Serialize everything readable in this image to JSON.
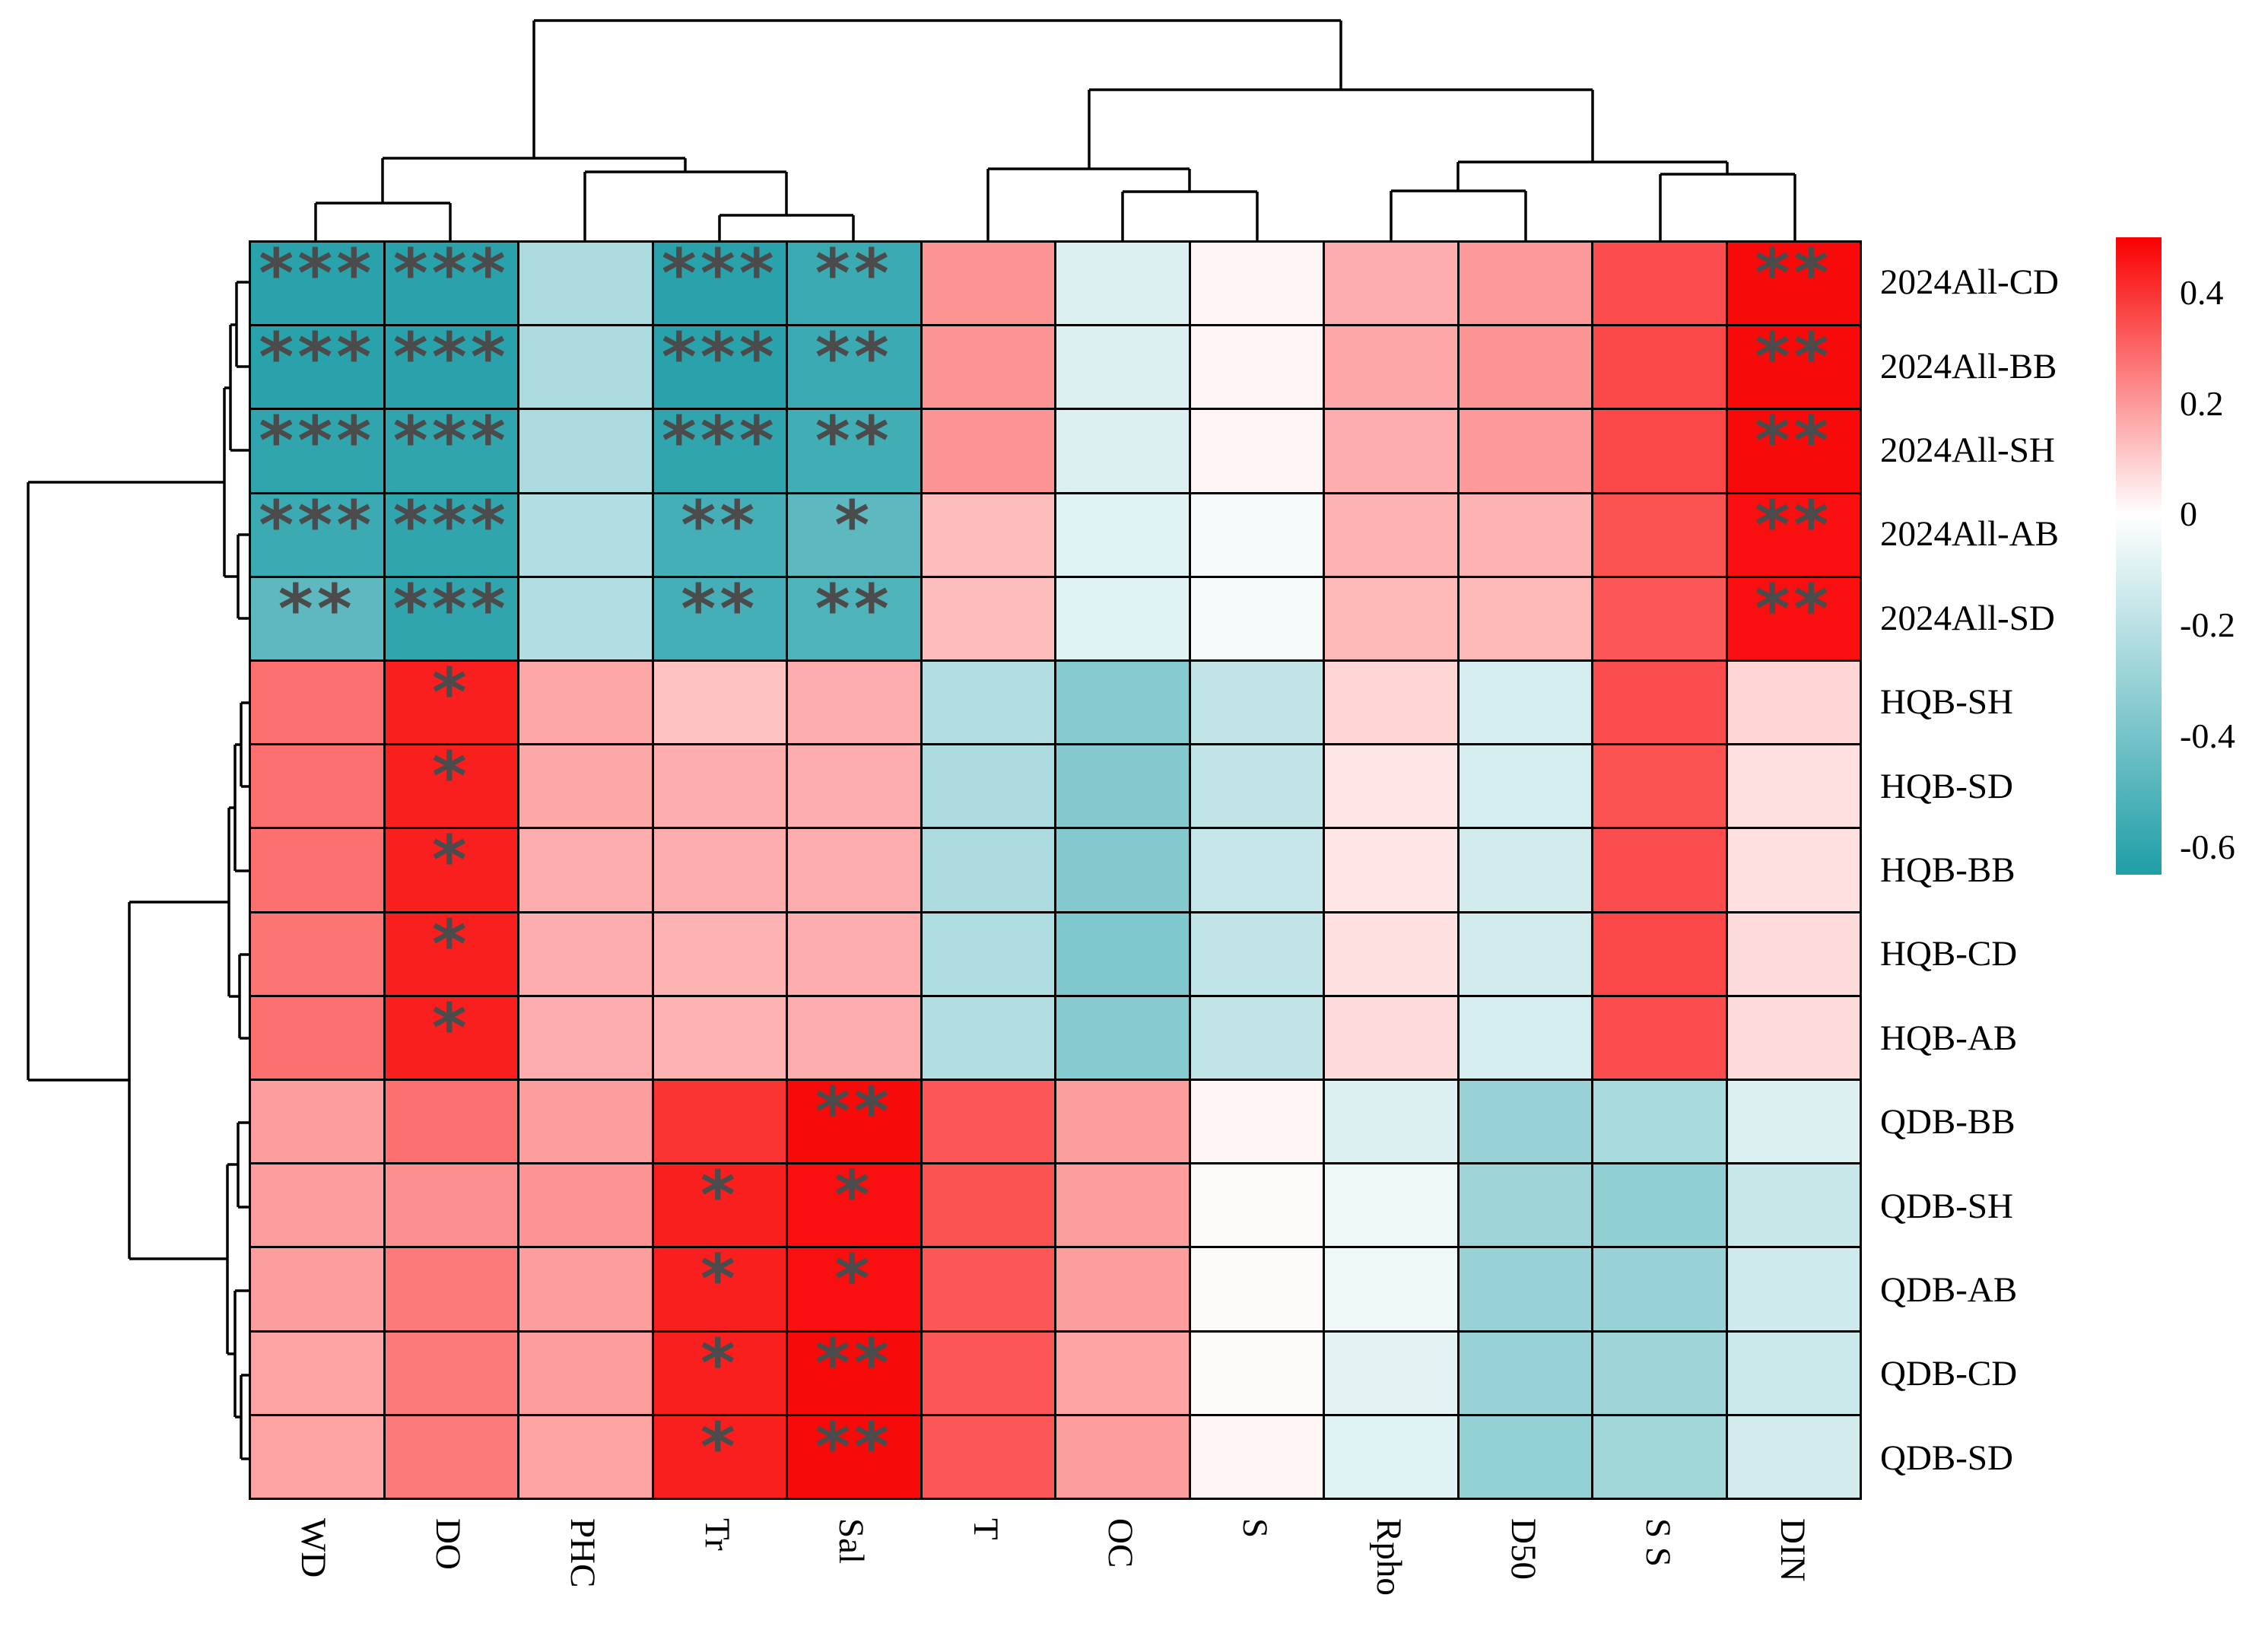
{
  "chart_data": {
    "type": "heatmap",
    "title": "",
    "legend_position": "right",
    "rows": [
      "2024All-CD",
      "2024All-BB",
      "2024All-SH",
      "2024All-AB",
      "2024All-SD",
      "HQB-SH",
      "HQB-SD",
      "HQB-BB",
      "HQB-CD",
      "HQB-AB",
      "QDB-BB",
      "QDB-SH",
      "QDB-AB",
      "QDB-CD",
      "QDB-SD"
    ],
    "columns": [
      "WD",
      "DO",
      "PHC",
      "Tr",
      "Sal",
      "T",
      "OC",
      "S",
      "Rpho",
      "D50",
      "S S",
      "DIN"
    ],
    "values": [
      [
        -0.62,
        -0.62,
        -0.24,
        -0.62,
        -0.57,
        0.21,
        -0.1,
        0.02,
        0.16,
        0.2,
        0.35,
        0.48
      ],
      [
        -0.62,
        -0.62,
        -0.24,
        -0.62,
        -0.57,
        0.21,
        -0.1,
        0.02,
        0.17,
        0.21,
        0.36,
        0.48
      ],
      [
        -0.6,
        -0.6,
        -0.24,
        -0.6,
        -0.55,
        0.21,
        -0.1,
        0.02,
        0.16,
        0.2,
        0.36,
        0.48
      ],
      [
        -0.57,
        -0.6,
        -0.22,
        -0.54,
        -0.47,
        0.13,
        -0.09,
        -0.03,
        0.15,
        0.15,
        0.34,
        0.47
      ],
      [
        -0.47,
        -0.6,
        -0.22,
        -0.54,
        -0.51,
        0.13,
        -0.09,
        -0.03,
        0.14,
        0.14,
        0.33,
        0.47
      ],
      [
        0.28,
        0.44,
        0.17,
        0.12,
        0.16,
        -0.22,
        -0.35,
        -0.18,
        0.08,
        -0.12,
        0.35,
        0.08
      ],
      [
        0.28,
        0.44,
        0.17,
        0.16,
        0.16,
        -0.24,
        -0.36,
        -0.18,
        0.05,
        -0.12,
        0.34,
        0.06
      ],
      [
        0.28,
        0.44,
        0.16,
        0.16,
        0.16,
        -0.24,
        -0.36,
        -0.17,
        0.05,
        -0.13,
        0.35,
        0.06
      ],
      [
        0.27,
        0.44,
        0.16,
        0.15,
        0.16,
        -0.23,
        -0.37,
        -0.18,
        0.06,
        -0.13,
        0.36,
        0.07
      ],
      [
        0.28,
        0.44,
        0.16,
        0.15,
        0.16,
        -0.22,
        -0.35,
        -0.18,
        0.07,
        -0.12,
        0.35,
        0.07
      ],
      [
        0.19,
        0.28,
        0.19,
        0.4,
        0.48,
        0.33,
        0.19,
        0.02,
        -0.1,
        -0.3,
        -0.25,
        -0.1
      ],
      [
        0.19,
        0.22,
        0.21,
        0.44,
        0.47,
        0.34,
        0.19,
        0.01,
        -0.05,
        -0.28,
        -0.32,
        -0.16
      ],
      [
        0.19,
        0.26,
        0.19,
        0.44,
        0.47,
        0.33,
        0.19,
        0.01,
        -0.05,
        -0.3,
        -0.3,
        -0.14
      ],
      [
        0.18,
        0.26,
        0.19,
        0.44,
        0.48,
        0.33,
        0.18,
        0.01,
        -0.08,
        -0.3,
        -0.28,
        -0.15
      ],
      [
        0.18,
        0.26,
        0.18,
        0.44,
        0.48,
        0.33,
        0.19,
        0.02,
        -0.09,
        -0.31,
        -0.27,
        -0.13
      ]
    ],
    "significance": [
      [
        "***",
        "***",
        "",
        "***",
        "**",
        "",
        "",
        "",
        "",
        "",
        "",
        "**"
      ],
      [
        "***",
        "***",
        "",
        "***",
        "**",
        "",
        "",
        "",
        "",
        "",
        "",
        "**"
      ],
      [
        "***",
        "***",
        "",
        "***",
        "**",
        "",
        "",
        "",
        "",
        "",
        "",
        "**"
      ],
      [
        "***",
        "***",
        "",
        "**",
        "*",
        "",
        "",
        "",
        "",
        "",
        "",
        "**"
      ],
      [
        "**",
        "***",
        "",
        "**",
        "**",
        "",
        "",
        "",
        "",
        "",
        "",
        "**"
      ],
      [
        "",
        "*",
        "",
        "",
        "",
        "",
        "",
        "",
        "",
        "",
        "",
        ""
      ],
      [
        "",
        "*",
        "",
        "",
        "",
        "",
        "",
        "",
        "",
        "",
        "",
        ""
      ],
      [
        "",
        "*",
        "",
        "",
        "",
        "",
        "",
        "",
        "",
        "",
        "",
        ""
      ],
      [
        "",
        "*",
        "",
        "",
        "",
        "",
        "",
        "",
        "",
        "",
        "",
        ""
      ],
      [
        "",
        "*",
        "",
        "",
        "",
        "",
        "",
        "",
        "",
        "",
        "",
        ""
      ],
      [
        "",
        "",
        "",
        "",
        "**",
        "",
        "",
        "",
        "",
        "",
        "",
        ""
      ],
      [
        "",
        "",
        "",
        "*",
        "*",
        "",
        "",
        "",
        "",
        "",
        "",
        ""
      ],
      [
        "",
        "",
        "",
        "*",
        "*",
        "",
        "",
        "",
        "",
        "",
        "",
        ""
      ],
      [
        "",
        "",
        "",
        "*",
        "**",
        "",
        "",
        "",
        "",
        "",
        "",
        ""
      ],
      [
        "",
        "",
        "",
        "*",
        "**",
        "",
        "",
        "",
        "",
        "",
        "",
        ""
      ]
    ],
    "colorbar": {
      "tick_values": [
        0.4,
        0.2,
        0,
        -0.2,
        -0.4,
        -0.6
      ],
      "tick_labels": [
        "0.4",
        "0.2",
        "0",
        "-0.2",
        "-0.4",
        "-0.6"
      ],
      "vmax": 0.5,
      "vmin": -0.65,
      "color_positive": "#f90000",
      "color_zero": "#ffffff",
      "color_negative": "#1f9ea7"
    },
    "star_color": "#4b4b4b",
    "dendrograms": {
      "column_segments": [
        [
          415,
          316,
          415,
          267
        ],
        [
          592,
          316,
          592,
          267
        ],
        [
          415,
          267,
          592,
          267
        ],
        [
          946,
          316,
          946,
          283
        ],
        [
          1122,
          316,
          1122,
          283
        ],
        [
          946,
          283,
          1122,
          283
        ],
        [
          769,
          316,
          769,
          226
        ],
        [
          1034,
          283,
          1034,
          226
        ],
        [
          769,
          226,
          1034,
          226
        ],
        [
          503,
          267,
          503,
          208
        ],
        [
          901,
          226,
          901,
          208
        ],
        [
          503,
          208,
          901,
          208
        ],
        [
          1476,
          316,
          1476,
          252
        ],
        [
          1653,
          316,
          1653,
          252
        ],
        [
          1476,
          252,
          1653,
          252
        ],
        [
          1299,
          316,
          1299,
          222
        ],
        [
          1564,
          252,
          1564,
          222
        ],
        [
          1299,
          222,
          1564,
          222
        ],
        [
          1829,
          316,
          1829,
          251
        ],
        [
          2006,
          316,
          2006,
          251
        ],
        [
          1829,
          251,
          2006,
          251
        ],
        [
          2183,
          316,
          2183,
          229
        ],
        [
          2360,
          316,
          2360,
          229
        ],
        [
          2183,
          229,
          2360,
          229
        ],
        [
          1917,
          251,
          1917,
          213
        ],
        [
          2271,
          229,
          2271,
          213
        ],
        [
          1917,
          213,
          2271,
          213
        ],
        [
          1432,
          222,
          1432,
          118
        ],
        [
          2094,
          213,
          2094,
          118
        ],
        [
          1432,
          118,
          2094,
          118
        ],
        [
          702,
          208,
          702,
          27
        ],
        [
          1763,
          118,
          1763,
          27
        ],
        [
          702,
          27,
          1763,
          27
        ]
      ],
      "row_segments": [
        [
          327,
          371,
          311,
          371
        ],
        [
          327,
          482,
          311,
          482
        ],
        [
          311,
          371,
          311,
          482
        ],
        [
          311,
          427,
          303,
          427
        ],
        [
          327,
          592,
          303,
          592
        ],
        [
          303,
          427,
          303,
          592
        ],
        [
          327,
          703,
          313,
          703
        ],
        [
          327,
          813,
          313,
          813
        ],
        [
          313,
          703,
          313,
          813
        ],
        [
          303,
          510,
          295,
          510
        ],
        [
          313,
          758,
          295,
          758
        ],
        [
          295,
          510,
          295,
          758
        ],
        [
          327,
          924,
          317,
          924
        ],
        [
          327,
          1034,
          317,
          1034
        ],
        [
          317,
          924,
          317,
          1034
        ],
        [
          317,
          979,
          309,
          979
        ],
        [
          327,
          1145,
          309,
          1145
        ],
        [
          309,
          979,
          309,
          1145
        ],
        [
          327,
          1255,
          315,
          1255
        ],
        [
          327,
          1365,
          315,
          1365
        ],
        [
          315,
          1255,
          315,
          1365
        ],
        [
          309,
          1062,
          301,
          1062
        ],
        [
          315,
          1310,
          301,
          1310
        ],
        [
          301,
          1062,
          301,
          1310
        ],
        [
          327,
          1476,
          313,
          1476
        ],
        [
          327,
          1587,
          313,
          1587
        ],
        [
          313,
          1476,
          313,
          1587
        ],
        [
          327,
          1808,
          317,
          1808
        ],
        [
          327,
          1918,
          317,
          1918
        ],
        [
          317,
          1808,
          317,
          1918
        ],
        [
          327,
          1697,
          309,
          1697
        ],
        [
          317,
          1863,
          309,
          1863
        ],
        [
          309,
          1697,
          309,
          1863
        ],
        [
          313,
          1531,
          299,
          1531
        ],
        [
          309,
          1780,
          299,
          1780
        ],
        [
          299,
          1531,
          299,
          1780
        ],
        [
          301,
          1186,
          170,
          1186
        ],
        [
          299,
          1655,
          170,
          1655
        ],
        [
          170,
          1186,
          170,
          1655
        ],
        [
          295,
          634,
          37,
          634
        ],
        [
          170,
          1420,
          37,
          1420
        ],
        [
          37,
          634,
          37,
          1420
        ]
      ]
    }
  }
}
